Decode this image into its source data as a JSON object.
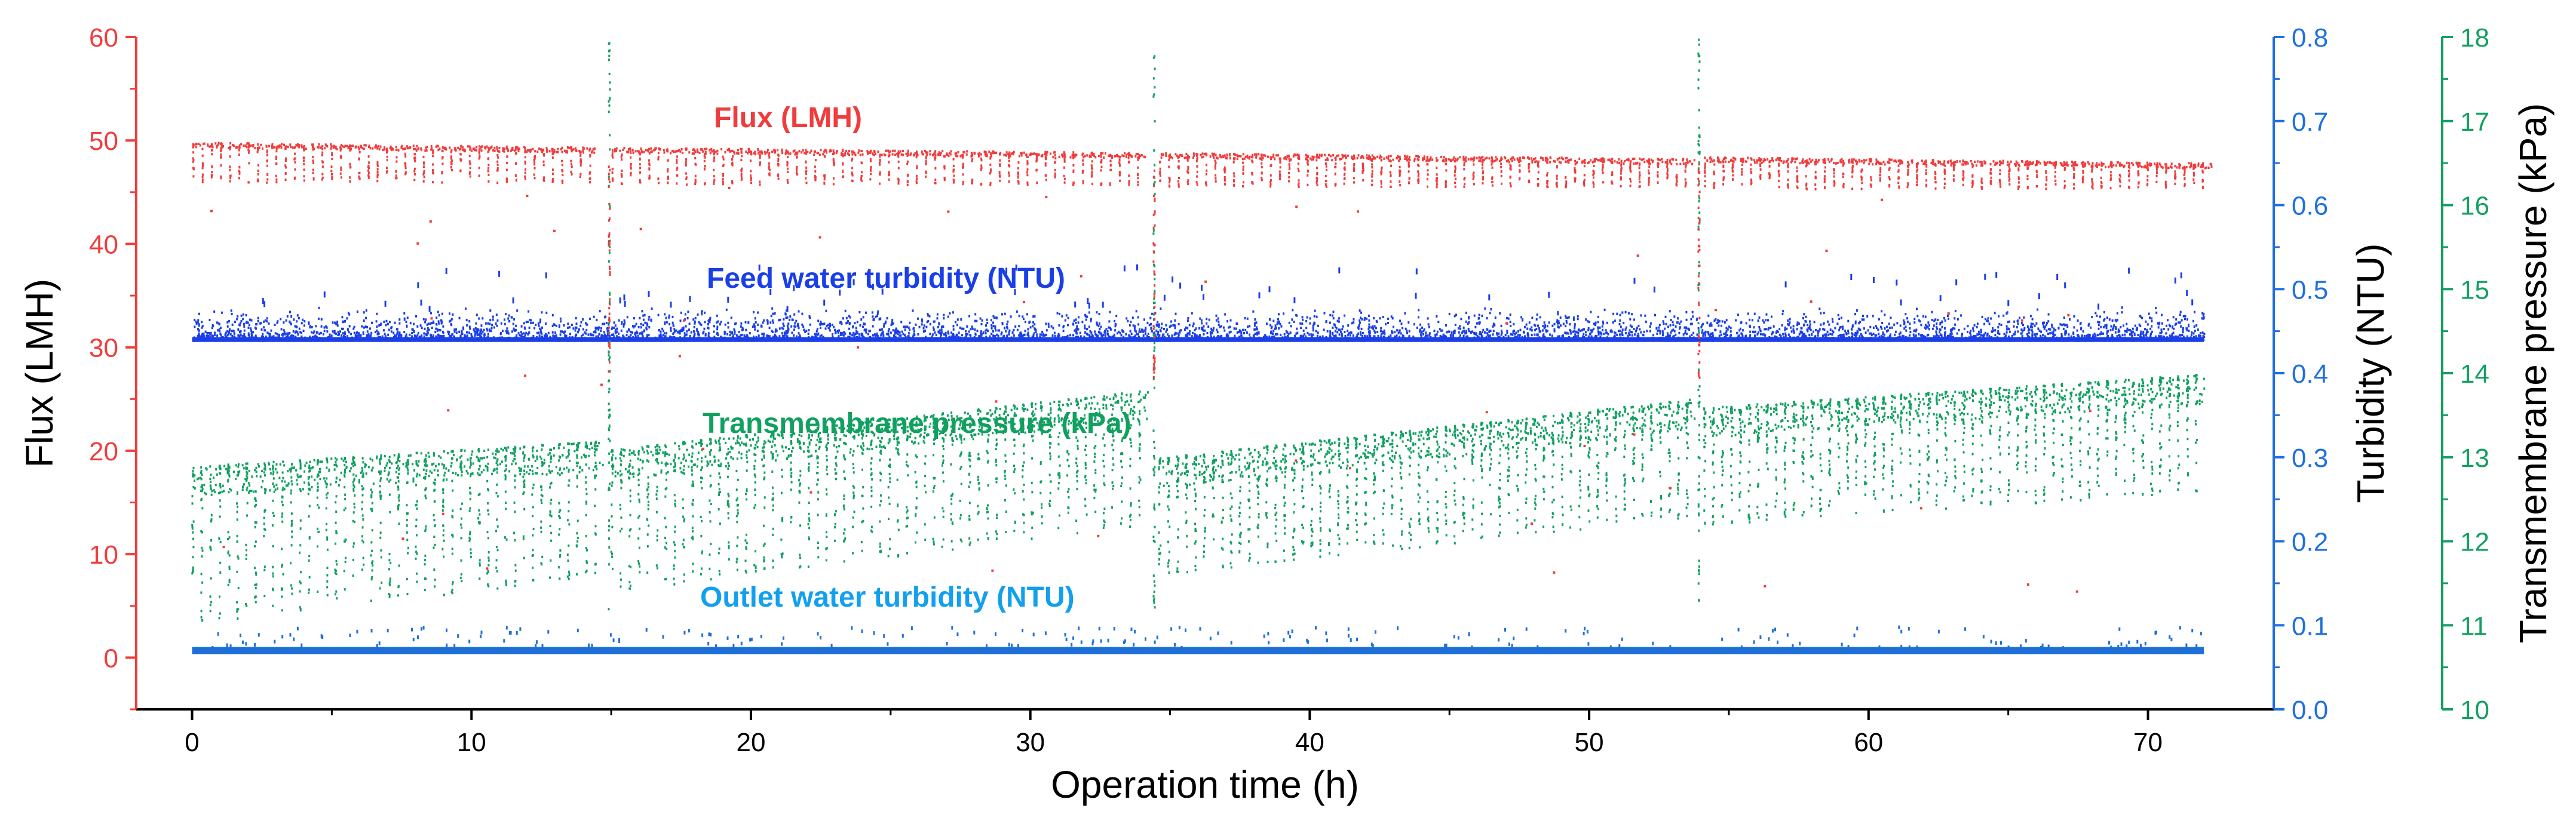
{
  "chart_data": {
    "type": "scatter",
    "title": "",
    "xlabel": "Operation time (h)",
    "xlim": [
      -2,
      74.5
    ],
    "xticks": [
      0,
      10,
      20,
      30,
      40,
      50,
      60,
      70
    ],
    "grid": false,
    "axes": {
      "left": {
        "label": "Flux (LMH)",
        "ylim": [
          -5,
          60
        ],
        "ticks": [
          0,
          10,
          20,
          30,
          40,
          50,
          60
        ],
        "color": "#f03c3c"
      },
      "right1": {
        "label": "Turbidity (NTU)",
        "ylim": [
          0.0,
          0.8
        ],
        "ticks": [
          "0.0",
          "0.1",
          "0.2",
          "0.3",
          "0.4",
          "0.5",
          "0.6",
          "0.7",
          "0.8"
        ],
        "color": "#1f6fe0"
      },
      "right2": {
        "label": "Transmembrane pressure (kPa)",
        "ylim": [
          10,
          18
        ],
        "ticks": [
          10,
          11,
          12,
          13,
          14,
          15,
          16,
          17,
          18
        ],
        "color": "#12a060"
      }
    },
    "cleaning_events_h": [
      14.9,
      34.4,
      53.9
    ],
    "series": [
      {
        "name": "Flux (LMH)",
        "axis": "left",
        "color": "#f03c3c",
        "label_color": "#f03c3c",
        "segments": [
          {
            "start": 0.0,
            "end": 14.5,
            "top_start": 49.9,
            "top_end": 49.4,
            "dip_low": 46.0
          },
          {
            "start": 15.0,
            "end": 34.0,
            "top_start": 49.4,
            "top_end": 48.9,
            "dip_low": 45.8
          },
          {
            "start": 34.6,
            "end": 53.6,
            "top_start": 48.9,
            "top_end": 48.3,
            "dip_low": 45.6
          },
          {
            "start": 54.1,
            "end": 72.0,
            "top_start": 48.5,
            "top_end": 47.9,
            "dip_low": 45.4
          }
        ]
      },
      {
        "name": "Feed water turbidity (NTU)",
        "axis": "right1",
        "color": "#1a3fe8",
        "label_color": "#1a3fe8",
        "baseline": 0.44,
        "band_top": 0.48,
        "outlier_max": 0.53
      },
      {
        "name": "Transmembrane pressure (kPa)",
        "axis": "right2",
        "color": "#12a060",
        "label_color": "#12a060",
        "segments": [
          {
            "start": 0.0,
            "end": 14.5,
            "top_start": 12.9,
            "top_end": 13.2,
            "low_start": 11.0,
            "low_end": 11.6
          },
          {
            "start": 15.0,
            "end": 34.0,
            "top_start": 13.1,
            "top_end": 13.8,
            "low_start": 11.4,
            "low_end": 12.2
          },
          {
            "start": 34.6,
            "end": 53.6,
            "top_start": 13.0,
            "top_end": 13.7,
            "low_start": 11.6,
            "low_end": 12.3
          },
          {
            "start": 54.1,
            "end": 72.0,
            "top_start": 13.6,
            "top_end": 14.0,
            "low_start": 12.2,
            "low_end": 12.6
          }
        ]
      },
      {
        "name": "Outlet water turbidity (NTU)",
        "axis": "right1",
        "color": "#1e70d8",
        "label_color": "#12a0ee",
        "baseline": 0.07,
        "band_top": 0.075,
        "outlier_max": 0.1
      }
    ]
  }
}
